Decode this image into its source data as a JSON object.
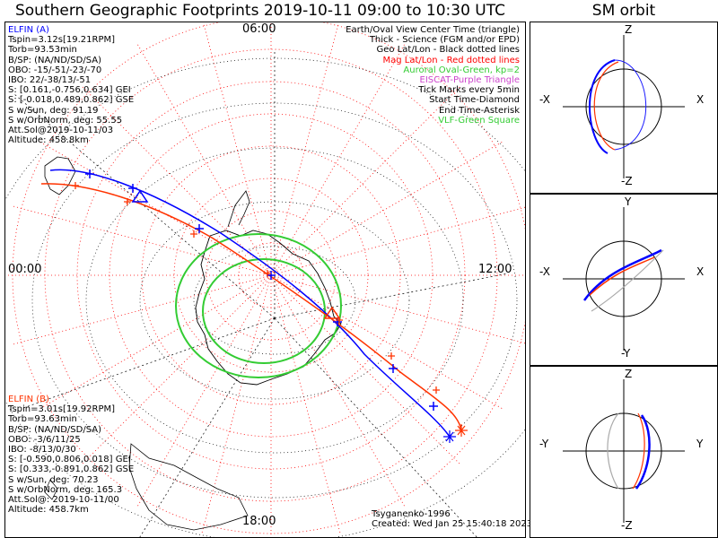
{
  "title": "Southern Geographic Footprints 2019-10-11 09:00 to 10:30 UTC",
  "sm_orbit": {
    "title": "SM orbit",
    "panels": [
      {
        "top": "Z",
        "bottom": "-Z",
        "left": "-X",
        "right": "X"
      },
      {
        "top": "Y",
        "bottom": "-Y",
        "left": "-X",
        "right": "X"
      },
      {
        "top": "Z",
        "bottom": "-Z",
        "left": "-Y",
        "right": "Y"
      }
    ]
  },
  "map": {
    "mlt_labels": {
      "top": "06:00",
      "left": "00:00",
      "right": "12:00",
      "bottom": "18:00"
    }
  },
  "elfin_a": {
    "name": "ELFIN (A)",
    "lines": [
      "Tspin=3.12s[19.21RPM]",
      "Torb=93.53min",
      "B/SP: (NA/ND/SD/SA)",
      "OBO: -15/-51/-23/-70",
      "IBO: 22/-38/13/-51",
      "S: [0.161,-0.756,0.634] GEI",
      "S: [-0.018,0.489,0.862] GSE",
      "S w/Sun, deg: 91.19",
      "S w/OrbNorm, deg: 55.55",
      "Att.Sol@2019-10-11/03",
      "Altitude: 458.8km"
    ]
  },
  "elfin_b": {
    "name": "ELFIN (B)",
    "lines": [
      "Tspin=3.01s[19.92RPM]",
      "Torb=93.63min",
      "B/SP: (NA/ND/SD/SA)",
      "OBO: -3/6/11/25",
      "IBO: -8/13/0/30",
      "S: [-0.590,0.806,0.018] GEI",
      "S: [0.333,-0.891,0.862] GSE",
      "S w/Sun, deg: 70.23",
      "S w/OrbNorm, deg: 165.3",
      "Att.Sol@: 2019-10-11/00",
      "Altitude: 458.7km"
    ]
  },
  "legend": [
    {
      "text": "Earth/Oval View Center Time (triangle)",
      "color": "#000000"
    },
    {
      "text": "Thick - Science (FGM and/or EPD)",
      "color": "#000000"
    },
    {
      "text": "Geo Lat/Lon - Black dotted lines",
      "color": "#000000"
    },
    {
      "text": "Mag Lat/Lon - Red dotted lines",
      "color": "#ff0000"
    },
    {
      "text": "Auroral Oval-Green, kp=2",
      "color": "#33cc33"
    },
    {
      "text": "EISCAT-Purple Triangle",
      "color": "#cc44cc"
    },
    {
      "text": "Tick Marks every 5min",
      "color": "#000000"
    },
    {
      "text": "Start Time-Diamond",
      "color": "#000000"
    },
    {
      "text": "End Time-Asterisk",
      "color": "#000000"
    },
    {
      "text": "VLF-Green Square",
      "color": "#33cc33"
    }
  ],
  "footer": {
    "model": "Tsyganenko-1996",
    "created": "Created: Wed Jan 25 15:40:18 2023"
  },
  "colors": {
    "elfin_a": "#0000ff",
    "elfin_b": "#ff3300",
    "oval": "#33cc33",
    "mag_grid": "#ff0000",
    "geo_grid": "#000000",
    "elfin_a_label": "#0000ff",
    "elfin_b_label": "#ff3300"
  },
  "chart_data": {
    "type": "polar-map",
    "title": "Southern Geographic Footprints 2019-10-11 09:00 to 10:30 UTC",
    "series": [
      {
        "name": "ELFIN (A)",
        "color": "#0000ff"
      },
      {
        "name": "ELFIN (B)",
        "color": "#ff3300"
      }
    ],
    "mlt_axis": [
      "06:00",
      "00:00",
      "12:00",
      "18:00"
    ],
    "kp": 2,
    "tick_interval_min": 5,
    "grid": true
  }
}
